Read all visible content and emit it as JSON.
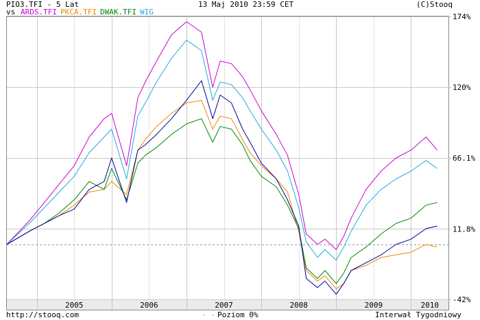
{
  "header": {
    "title": "PIO3.TFI - 5 Lat",
    "timestamp": "13 Maj 2010 23:59 CET",
    "copyright": "(C)Stooq",
    "vs_label": "vs"
  },
  "footer": {
    "url": "http://stooq.com",
    "baseline_label": "Poziom 0%",
    "interval": "Interwał Tygodniowy"
  },
  "colors": {
    "PIO3.TFI": "#000099",
    "ARDS.TFI": "#cc00cc",
    "PKCA.TFI": "#ee8800",
    "DWAK.TFI": "#008800",
    "WIG": "#22aadd",
    "grid": "#c8c8c8",
    "baseline": "#999999"
  },
  "chart_data": {
    "type": "line",
    "title": "PIO3.TFI - 5 Lat",
    "xlabel": "",
    "ylabel": "",
    "y_unit": "%",
    "x_ticks": [
      "2005",
      "2006",
      "2007",
      "2008",
      "2009",
      "2010"
    ],
    "y_ticks": [
      "174%",
      "120%",
      "66.1%",
      "11.8%",
      "-42%"
    ],
    "ylim": [
      -42,
      174
    ],
    "xlim": [
      2004.6,
      2010.5
    ],
    "grid": true,
    "baseline": 0,
    "legend": [
      "ARDS.TFI",
      "PKCA.TFI",
      "DWAK.TFI",
      "WIG"
    ],
    "series": [
      {
        "name": "PIO3.TFI",
        "x": [
          2004.6,
          2004.9,
          2005.1,
          2005.3,
          2005.5,
          2005.7,
          2005.9,
          2006.0,
          2006.2,
          2006.35,
          2006.45,
          2006.6,
          2006.8,
          2007.0,
          2007.2,
          2007.35,
          2007.45,
          2007.6,
          2007.75,
          2007.85,
          2008.0,
          2008.2,
          2008.35,
          2008.5,
          2008.6,
          2008.75,
          2008.85,
          2009.0,
          2009.1,
          2009.2,
          2009.4,
          2009.6,
          2009.8,
          2010.0,
          2010.2,
          2010.35
        ],
        "y": [
          0,
          10,
          16,
          22,
          27,
          42,
          48,
          66,
          32,
          72,
          76,
          84,
          96,
          110,
          125,
          96,
          114,
          108,
          88,
          78,
          62,
          50,
          34,
          14,
          -26,
          -33,
          -28,
          -38,
          -30,
          -20,
          -14,
          -8,
          0,
          4,
          12,
          14
        ]
      },
      {
        "name": "ARDS.TFI",
        "x": [
          2004.6,
          2004.9,
          2005.1,
          2005.3,
          2005.5,
          2005.7,
          2005.9,
          2006.0,
          2006.2,
          2006.35,
          2006.45,
          2006.6,
          2006.8,
          2007.0,
          2007.2,
          2007.35,
          2007.45,
          2007.6,
          2007.75,
          2007.85,
          2008.0,
          2008.2,
          2008.35,
          2008.5,
          2008.6,
          2008.75,
          2008.85,
          2009.0,
          2009.1,
          2009.2,
          2009.4,
          2009.6,
          2009.8,
          2010.0,
          2010.2,
          2010.35
        ],
        "y": [
          0,
          18,
          32,
          46,
          60,
          82,
          96,
          100,
          60,
          112,
          124,
          140,
          160,
          170,
          162,
          120,
          140,
          138,
          128,
          118,
          102,
          84,
          68,
          38,
          8,
          0,
          4,
          -4,
          6,
          20,
          42,
          56,
          66,
          72,
          82,
          72
        ]
      },
      {
        "name": "PKCA.TFI",
        "x": [
          2004.6,
          2004.9,
          2005.1,
          2005.3,
          2005.5,
          2005.7,
          2005.9,
          2006.0,
          2006.2,
          2006.35,
          2006.45,
          2006.6,
          2006.8,
          2007.0,
          2007.2,
          2007.35,
          2007.45,
          2007.6,
          2007.75,
          2007.85,
          2008.0,
          2008.2,
          2008.35,
          2008.5,
          2008.6,
          2008.75,
          2008.85,
          2009.0,
          2009.1,
          2009.2,
          2009.4,
          2009.6,
          2009.8,
          2010.0,
          2010.2,
          2010.35
        ],
        "y": [
          0,
          10,
          16,
          22,
          30,
          40,
          42,
          48,
          38,
          72,
          80,
          90,
          100,
          108,
          110,
          88,
          98,
          96,
          80,
          70,
          60,
          50,
          40,
          10,
          -20,
          -28,
          -24,
          -34,
          -30,
          -20,
          -16,
          -10,
          -8,
          -6,
          0,
          -2
        ]
      },
      {
        "name": "DWAK.TFI",
        "x": [
          2004.6,
          2004.9,
          2005.1,
          2005.3,
          2005.5,
          2005.7,
          2005.9,
          2006.0,
          2006.2,
          2006.35,
          2006.45,
          2006.6,
          2006.8,
          2007.0,
          2007.2,
          2007.35,
          2007.45,
          2007.6,
          2007.75,
          2007.85,
          2008.0,
          2008.2,
          2008.35,
          2008.5,
          2008.6,
          2008.75,
          2008.85,
          2009.0,
          2009.1,
          2009.2,
          2009.4,
          2009.6,
          2009.8,
          2010.0,
          2010.2,
          2010.35
        ],
        "y": [
          0,
          10,
          16,
          24,
          34,
          48,
          42,
          58,
          34,
          62,
          68,
          74,
          84,
          92,
          96,
          78,
          90,
          88,
          76,
          64,
          52,
          44,
          30,
          12,
          -18,
          -26,
          -20,
          -30,
          -22,
          -10,
          -2,
          8,
          16,
          20,
          30,
          32
        ]
      },
      {
        "name": "WIG",
        "x": [
          2004.6,
          2004.9,
          2005.1,
          2005.3,
          2005.5,
          2005.7,
          2005.9,
          2006.0,
          2006.2,
          2006.35,
          2006.45,
          2006.6,
          2006.8,
          2007.0,
          2007.2,
          2007.35,
          2007.45,
          2007.6,
          2007.75,
          2007.85,
          2008.0,
          2008.2,
          2008.35,
          2008.5,
          2008.6,
          2008.75,
          2008.85,
          2009.0,
          2009.1,
          2009.2,
          2009.4,
          2009.6,
          2009.8,
          2010.0,
          2010.2,
          2010.35
        ],
        "y": [
          0,
          16,
          28,
          40,
          52,
          70,
          82,
          88,
          50,
          98,
          108,
          124,
          142,
          156,
          148,
          110,
          124,
          122,
          112,
          102,
          88,
          72,
          56,
          28,
          2,
          -10,
          -4,
          -12,
          -2,
          10,
          30,
          42,
          50,
          56,
          64,
          58
        ]
      }
    ]
  }
}
